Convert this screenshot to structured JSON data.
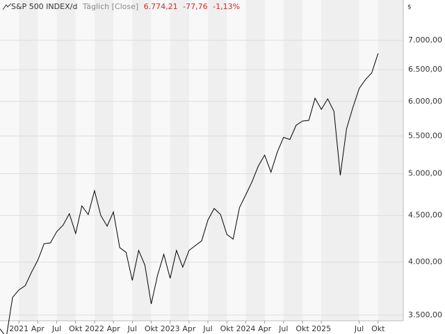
{
  "header": {
    "title": "S&P 500 INDEX/d",
    "interval": "Täglich [Close]",
    "last": "6.774,21",
    "change": "-77,76",
    "change_pct": "-1,13%"
  },
  "chart_data": {
    "type": "line",
    "y_unit": "$",
    "log_scale": true,
    "grid": true,
    "color": "#000000",
    "x": [
      "2020-10",
      "2020-11",
      "2020-12",
      "2021-01",
      "2021-02",
      "2021-03",
      "2021-04",
      "2021-05",
      "2021-06",
      "2021-07",
      "2021-08",
      "2021-09",
      "2021-10",
      "2021-11",
      "2021-12",
      "2022-01",
      "2022-02",
      "2022-03",
      "2022-04",
      "2022-05",
      "2022-06",
      "2022-07",
      "2022-08",
      "2022-09",
      "2022-10",
      "2022-11",
      "2022-12",
      "2023-01",
      "2023-02",
      "2023-03",
      "2023-04",
      "2023-05",
      "2023-06",
      "2023-07",
      "2023-08",
      "2023-09",
      "2023-10",
      "2023-11",
      "2023-12",
      "2024-01",
      "2024-02",
      "2024-03",
      "2024-04",
      "2024-05",
      "2024-06",
      "2024-07",
      "2024-08",
      "2024-09",
      "2024-10",
      "2024-11",
      "2024-12",
      "2025-01",
      "2025-02",
      "2025-03",
      "2025-04",
      "2025-05",
      "2025-06",
      "2025-07",
      "2025-08",
      "2025-09",
      "2025-10"
    ],
    "values": [
      3380,
      3310,
      3660,
      3730,
      3770,
      3900,
      4020,
      4190,
      4200,
      4320,
      4390,
      4520,
      4300,
      4610,
      4510,
      4790,
      4500,
      4380,
      4540,
      4150,
      4100,
      3820,
      4120,
      3970,
      3600,
      3870,
      4080,
      3840,
      4120,
      3950,
      4120,
      4170,
      4220,
      4450,
      4580,
      4510,
      4290,
      4240,
      4590,
      4740,
      4900,
      5100,
      5240,
      5020,
      5280,
      5480,
      5450,
      5650,
      5710,
      5720,
      6050,
      5880,
      6040,
      5850,
      4980,
      5600,
      5910,
      6200,
      6340,
      6450,
      6774
    ],
    "xlim": [
      "2020-10",
      "2026-02"
    ],
    "xticks": [
      {
        "value": "2021-01",
        "label": "2021"
      },
      {
        "value": "2021-04",
        "label": "Apr"
      },
      {
        "value": "2021-07",
        "label": "Jul"
      },
      {
        "value": "2021-10",
        "label": "Okt"
      },
      {
        "value": "2022-01",
        "label": "2022"
      },
      {
        "value": "2022-04",
        "label": "Apr"
      },
      {
        "value": "2022-07",
        "label": "Jul"
      },
      {
        "value": "2022-10",
        "label": "Okt"
      },
      {
        "value": "2023-01",
        "label": "2023"
      },
      {
        "value": "2023-04",
        "label": "Apr"
      },
      {
        "value": "2023-07",
        "label": "Jul"
      },
      {
        "value": "2023-10",
        "label": "Okt"
      },
      {
        "value": "2024-01",
        "label": "2024"
      },
      {
        "value": "2024-04",
        "label": "Apr"
      },
      {
        "value": "2024-07",
        "label": "Jul"
      },
      {
        "value": "2024-10",
        "label": "Okt"
      },
      {
        "value": "2025-01",
        "label": "2025"
      },
      {
        "value": "2025-07",
        "label": "Jul"
      },
      {
        "value": "2025-10",
        "label": "Okt"
      }
    ],
    "ylim": [
      3450,
      7750
    ],
    "yticks": [
      {
        "value": 3500,
        "label": "3.500,00"
      },
      {
        "value": 4000,
        "label": "4.000,00"
      },
      {
        "value": 4500,
        "label": "4.500,00"
      },
      {
        "value": 5000,
        "label": "5.000,00"
      },
      {
        "value": 5500,
        "label": "5.500,00"
      },
      {
        "value": 6000,
        "label": "6.000,00"
      },
      {
        "value": 6500,
        "label": "6.500,00"
      },
      {
        "value": 7000,
        "label": "7.000,00"
      }
    ]
  }
}
